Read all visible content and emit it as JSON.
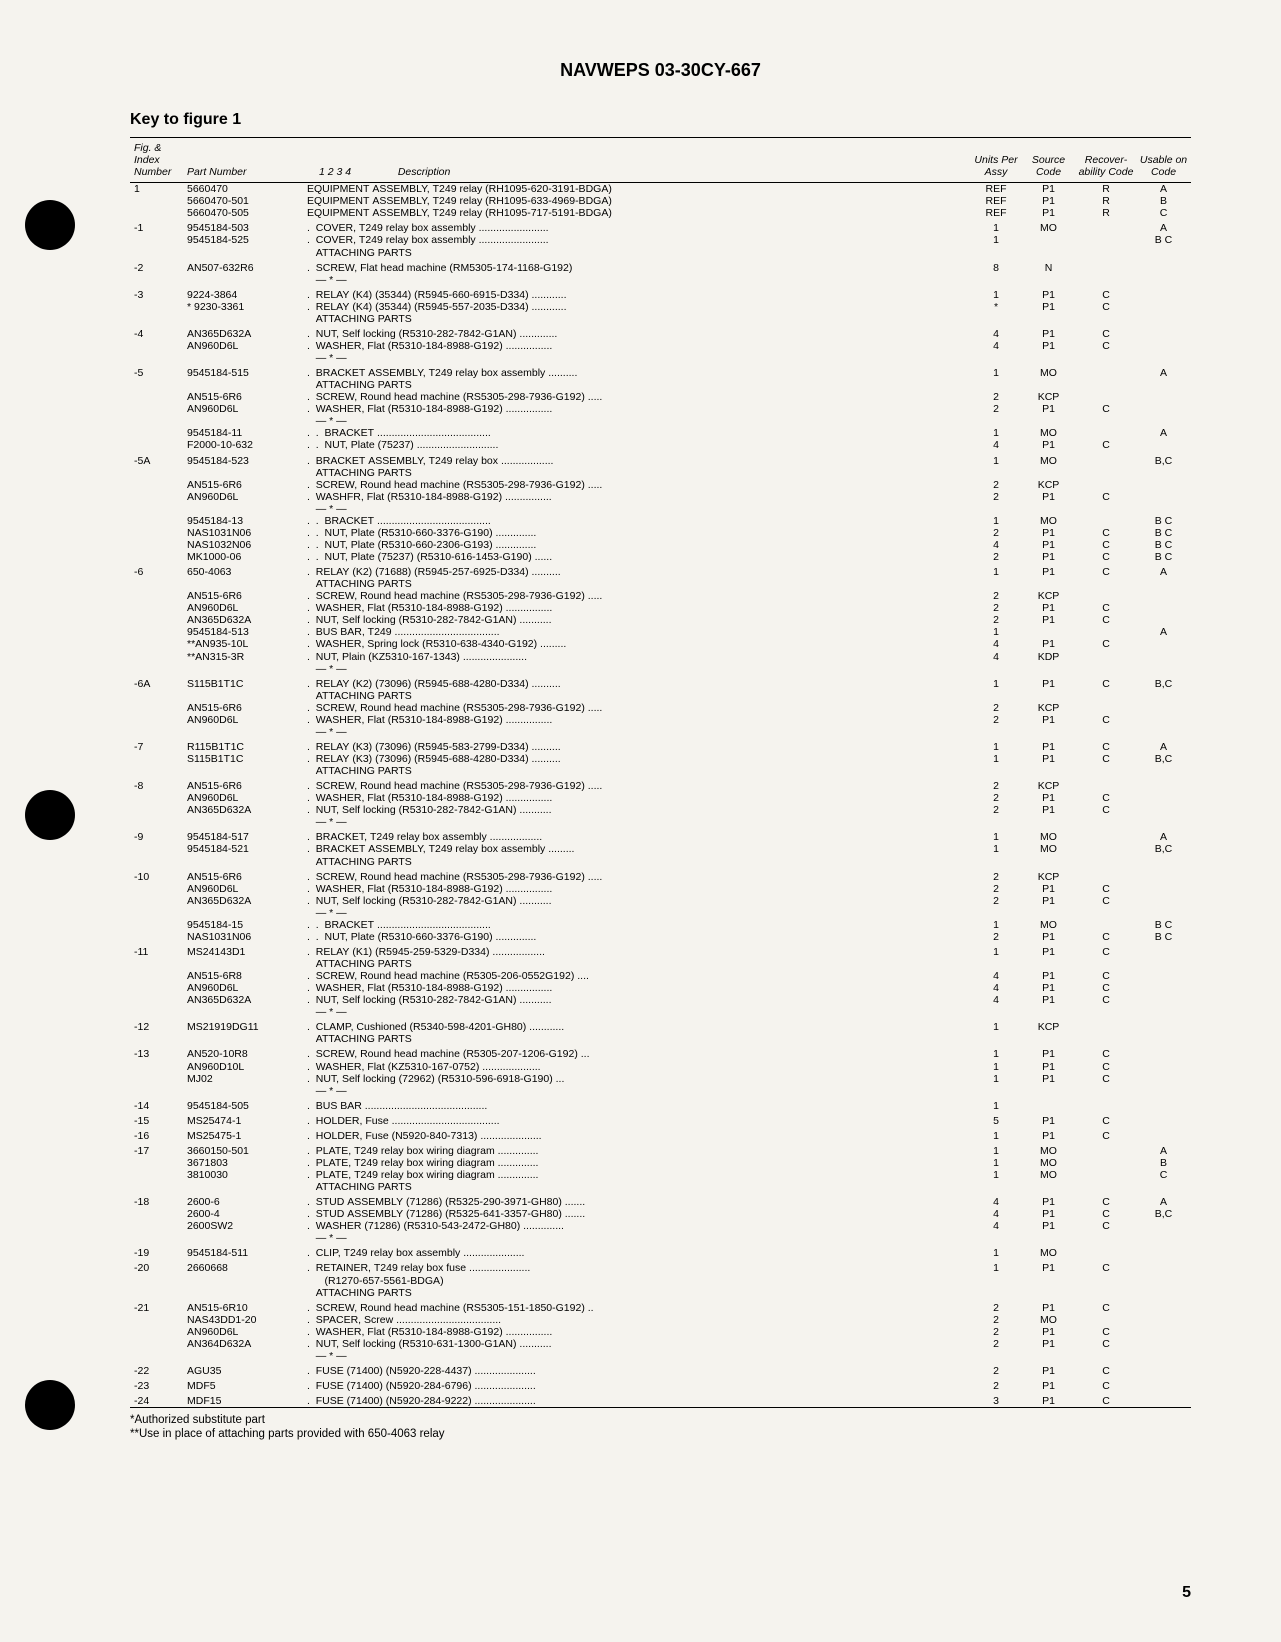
{
  "header": "NAVWEPS 03-30CY-667",
  "key_title": "Key to figure 1",
  "columns": {
    "idx": "Fig. &\nIndex\nNumber",
    "part": "Part Number",
    "desc_nums": "1   2   3   4",
    "desc": "Description",
    "units": "Units\nPer\nAssy",
    "src": "Source\nCode",
    "rec": "Recover-\nability\nCode",
    "use": "Usable\non\nCode"
  },
  "rows": [
    {
      "idx": "1",
      "part": "5660470",
      "desc": "EQUIPMENT ASSEMBLY, T249 relay (RH1095-620-3191-BDGA)",
      "units": "REF",
      "src": "P1",
      "rec": "R",
      "use": "A"
    },
    {
      "idx": "",
      "part": "5660470-501",
      "desc": "EQUIPMENT ASSEMBLY, T249 relay (RH1095-633-4969-BDGA)",
      "units": "REF",
      "src": "P1",
      "rec": "R",
      "use": "B"
    },
    {
      "idx": "",
      "part": "5660470-505",
      "desc": "EQUIPMENT ASSEMBLY, T249 relay (RH1095-717-5191-BDGA)",
      "units": "REF",
      "src": "P1",
      "rec": "R",
      "use": "C"
    },
    {
      "idx": "-1",
      "part": "9545184-503",
      "desc": ".  COVER, T249 relay box assembly ........................",
      "units": "1",
      "src": "MO",
      "rec": "",
      "use": "A"
    },
    {
      "idx": "",
      "part": "9545184-525",
      "desc": ".  COVER, T249 relay box assembly ........................",
      "units": "1",
      "src": "",
      "rec": "",
      "use": "B C"
    },
    {
      "idx": "",
      "part": "",
      "desc": "   ATTACHING PARTS",
      "units": "",
      "src": "",
      "rec": "",
      "use": ""
    },
    {
      "idx": "-2",
      "part": "AN507-632R6",
      "desc": ".  SCREW, Flat head machine (RM5305-174-1168-G192)",
      "units": "8",
      "src": "N",
      "rec": "",
      "use": ""
    },
    {
      "idx": "",
      "part": "",
      "desc": "   — * —",
      "units": "",
      "src": "",
      "rec": "",
      "use": ""
    },
    {
      "idx": "-3",
      "part": "9224-3864",
      "desc": ".  RELAY (K4) (35344) (R5945-660-6915-D334) ............",
      "units": "1",
      "src": "P1",
      "rec": "C",
      "use": ""
    },
    {
      "idx": "",
      "part": "* 9230-3361",
      "desc": ".  RELAY (K4) (35344) (R5945-557-2035-D334) ............",
      "units": "*",
      "src": "P1",
      "rec": "C",
      "use": ""
    },
    {
      "idx": "",
      "part": "",
      "desc": "   ATTACHING PARTS",
      "units": "",
      "src": "",
      "rec": "",
      "use": ""
    },
    {
      "idx": "-4",
      "part": "AN365D632A",
      "desc": ".  NUT, Self locking (R5310-282-7842-G1AN) .............",
      "units": "4",
      "src": "P1",
      "rec": "C",
      "use": ""
    },
    {
      "idx": "",
      "part": "AN960D6L",
      "desc": ".  WASHER, Flat (R5310-184-8988-G192) ................",
      "units": "4",
      "src": "P1",
      "rec": "C",
      "use": ""
    },
    {
      "idx": "",
      "part": "",
      "desc": "   — * —",
      "units": "",
      "src": "",
      "rec": "",
      "use": ""
    },
    {
      "idx": "-5",
      "part": "9545184-515",
      "desc": ".  BRACKET ASSEMBLY, T249 relay box assembly ..........",
      "units": "1",
      "src": "MO",
      "rec": "",
      "use": "A"
    },
    {
      "idx": "",
      "part": "",
      "desc": "   ATTACHING PARTS",
      "units": "",
      "src": "",
      "rec": "",
      "use": ""
    },
    {
      "idx": "",
      "part": "AN515-6R6",
      "desc": ".  SCREW, Round head machine (RS5305-298-7936-G192) .....",
      "units": "2",
      "src": "KCP",
      "rec": "",
      "use": ""
    },
    {
      "idx": "",
      "part": "AN960D6L",
      "desc": ".  WASHER, Flat (R5310-184-8988-G192) ................",
      "units": "2",
      "src": "P1",
      "rec": "C",
      "use": ""
    },
    {
      "idx": "",
      "part": "",
      "desc": "   — * —",
      "units": "",
      "src": "",
      "rec": "",
      "use": ""
    },
    {
      "idx": "",
      "part": "9545184-11",
      "desc": ".  .  BRACKET .......................................",
      "units": "1",
      "src": "MO",
      "rec": "",
      "use": "A"
    },
    {
      "idx": "",
      "part": "F2000-10-632",
      "desc": ".  .  NUT, Plate (75237) ............................",
      "units": "4",
      "src": "P1",
      "rec": "C",
      "use": ""
    },
    {
      "idx": "-5A",
      "part": "9545184-523",
      "desc": ".  BRACKET ASSEMBLY, T249 relay box ..................",
      "units": "1",
      "src": "MO",
      "rec": "",
      "use": "B,C"
    },
    {
      "idx": "",
      "part": "",
      "desc": "   ATTACHING PARTS",
      "units": "",
      "src": "",
      "rec": "",
      "use": ""
    },
    {
      "idx": "",
      "part": "AN515-6R6",
      "desc": ".  SCREW, Round head machine (RS5305-298-7936-G192) .....",
      "units": "2",
      "src": "KCP",
      "rec": "",
      "use": ""
    },
    {
      "idx": "",
      "part": "AN960D6L",
      "desc": ".  WASHFR, Flat (R5310-184-8988-G192) ................",
      "units": "2",
      "src": "P1",
      "rec": "C",
      "use": ""
    },
    {
      "idx": "",
      "part": "",
      "desc": "   — * —",
      "units": "",
      "src": "",
      "rec": "",
      "use": ""
    },
    {
      "idx": "",
      "part": "9545184-13",
      "desc": ".  .  BRACKET .......................................",
      "units": "1",
      "src": "MO",
      "rec": "",
      "use": "B C"
    },
    {
      "idx": "",
      "part": "NAS1031N06",
      "desc": ".  .  NUT, Plate (R5310-660-3376-G190) ..............",
      "units": "2",
      "src": "P1",
      "rec": "C",
      "use": "B C"
    },
    {
      "idx": "",
      "part": "NAS1032N06",
      "desc": ".  .  NUT, Plate (R5310-660-2306-G193) ..............",
      "units": "4",
      "src": "P1",
      "rec": "C",
      "use": "B C"
    },
    {
      "idx": "",
      "part": "MK1000-06",
      "desc": ".  .  NUT, Plate (75237) (R5310-616-1453-G190) ......",
      "units": "2",
      "src": "P1",
      "rec": "C",
      "use": "B C"
    },
    {
      "idx": "-6",
      "part": "650-4063",
      "desc": ".  RELAY (K2) (71688) (R5945-257-6925-D334) ..........",
      "units": "1",
      "src": "P1",
      "rec": "C",
      "use": "A"
    },
    {
      "idx": "",
      "part": "",
      "desc": "   ATTACHING PARTS",
      "units": "",
      "src": "",
      "rec": "",
      "use": ""
    },
    {
      "idx": "",
      "part": "AN515-6R6",
      "desc": ".  SCREW, Round head machine (RS5305-298-7936-G192) .....",
      "units": "2",
      "src": "KCP",
      "rec": "",
      "use": ""
    },
    {
      "idx": "",
      "part": "AN960D6L",
      "desc": ".  WASHER, Flat (R5310-184-8988-G192) ................",
      "units": "2",
      "src": "P1",
      "rec": "C",
      "use": ""
    },
    {
      "idx": "",
      "part": "AN365D632A",
      "desc": ".  NUT, Self locking (R5310-282-7842-G1AN) ...........",
      "units": "2",
      "src": "P1",
      "rec": "C",
      "use": ""
    },
    {
      "idx": "",
      "part": "9545184-513",
      "desc": ".  BUS BAR, T249 ....................................",
      "units": "1",
      "src": "",
      "rec": "",
      "use": "A"
    },
    {
      "idx": "",
      "part": "**AN935-10L",
      "desc": ".  WASHER, Spring lock (R5310-638-4340-G192) .........",
      "units": "4",
      "src": "P1",
      "rec": "C",
      "use": ""
    },
    {
      "idx": "",
      "part": "**AN315-3R",
      "desc": ".  NUT, Plain (KZ5310-167-1343) ......................",
      "units": "4",
      "src": "KDP",
      "rec": "",
      "use": ""
    },
    {
      "idx": "",
      "part": "",
      "desc": "   — * —",
      "units": "",
      "src": "",
      "rec": "",
      "use": ""
    },
    {
      "idx": "-6A",
      "part": "S115B1T1C",
      "desc": ".  RELAY (K2) (73096) (R5945-688-4280-D334) ..........",
      "units": "1",
      "src": "P1",
      "rec": "C",
      "use": "B,C"
    },
    {
      "idx": "",
      "part": "",
      "desc": "   ATTACHING PARTS",
      "units": "",
      "src": "",
      "rec": "",
      "use": ""
    },
    {
      "idx": "",
      "part": "AN515-6R6",
      "desc": ".  SCREW, Round head machine (RS5305-298-7936-G192) .....",
      "units": "2",
      "src": "KCP",
      "rec": "",
      "use": ""
    },
    {
      "idx": "",
      "part": "AN960D6L",
      "desc": ".  WASHER, Flat (R5310-184-8988-G192) ................",
      "units": "2",
      "src": "P1",
      "rec": "C",
      "use": ""
    },
    {
      "idx": "",
      "part": "",
      "desc": "   — * —",
      "units": "",
      "src": "",
      "rec": "",
      "use": ""
    },
    {
      "idx": "-7",
      "part": "R115B1T1C",
      "desc": ".  RELAY (K3) (73096) (R5945-583-2799-D334) ..........",
      "units": "1",
      "src": "P1",
      "rec": "C",
      "use": "A"
    },
    {
      "idx": "",
      "part": "S115B1T1C",
      "desc": ".  RELAY (K3) (73096) (R5945-688-4280-D334) ..........",
      "units": "1",
      "src": "P1",
      "rec": "C",
      "use": "B,C"
    },
    {
      "idx": "",
      "part": "",
      "desc": "   ATTACHING PARTS",
      "units": "",
      "src": "",
      "rec": "",
      "use": ""
    },
    {
      "idx": "-8",
      "part": "AN515-6R6",
      "desc": ".  SCREW, Round head machine (RS5305-298-7936-G192) .....",
      "units": "2",
      "src": "KCP",
      "rec": "",
      "use": ""
    },
    {
      "idx": "",
      "part": "AN960D6L",
      "desc": ".  WASHER, Flat (R5310-184-8988-G192) ................",
      "units": "2",
      "src": "P1",
      "rec": "C",
      "use": ""
    },
    {
      "idx": "",
      "part": "AN365D632A",
      "desc": ".  NUT, Self locking (R5310-282-7842-G1AN) ...........",
      "units": "2",
      "src": "P1",
      "rec": "C",
      "use": ""
    },
    {
      "idx": "",
      "part": "",
      "desc": "   — * —",
      "units": "",
      "src": "",
      "rec": "",
      "use": ""
    },
    {
      "idx": "-9",
      "part": "9545184-517",
      "desc": ".  BRACKET, T249 relay box assembly ..................",
      "units": "1",
      "src": "MO",
      "rec": "",
      "use": "A"
    },
    {
      "idx": "",
      "part": "9545184-521",
      "desc": ".  BRACKET ASSEMBLY, T249 relay box assembly .........",
      "units": "1",
      "src": "MO",
      "rec": "",
      "use": "B,C"
    },
    {
      "idx": "",
      "part": "",
      "desc": "   ATTACHING PARTS",
      "units": "",
      "src": "",
      "rec": "",
      "use": ""
    },
    {
      "idx": "-10",
      "part": "AN515-6R6",
      "desc": ".  SCREW, Round head machine (RS5305-298-7936-G192) .....",
      "units": "2",
      "src": "KCP",
      "rec": "",
      "use": ""
    },
    {
      "idx": "",
      "part": "AN960D6L",
      "desc": ".  WASHER, Flat (R5310-184-8988-G192) ................",
      "units": "2",
      "src": "P1",
      "rec": "C",
      "use": ""
    },
    {
      "idx": "",
      "part": "AN365D632A",
      "desc": ".  NUT, Self locking (R5310-282-7842-G1AN) ...........",
      "units": "2",
      "src": "P1",
      "rec": "C",
      "use": ""
    },
    {
      "idx": "",
      "part": "",
      "desc": "   — * —",
      "units": "",
      "src": "",
      "rec": "",
      "use": ""
    },
    {
      "idx": "",
      "part": "9545184-15",
      "desc": ".  .  BRACKET .......................................",
      "units": "1",
      "src": "MO",
      "rec": "",
      "use": "B C"
    },
    {
      "idx": "",
      "part": "NAS1031N06",
      "desc": ".  .  NUT, Plate (R5310-660-3376-G190) ..............",
      "units": "2",
      "src": "P1",
      "rec": "C",
      "use": "B C"
    },
    {
      "idx": "-11",
      "part": "MS24143D1",
      "desc": ".  RELAY (K1) (R5945-259-5329-D334) ..................",
      "units": "1",
      "src": "P1",
      "rec": "C",
      "use": ""
    },
    {
      "idx": "",
      "part": "",
      "desc": "   ATTACHING PARTS",
      "units": "",
      "src": "",
      "rec": "",
      "use": ""
    },
    {
      "idx": "",
      "part": "AN515-6R8",
      "desc": ".  SCREW, Round head machine (R5305-206-0552G192) ....",
      "units": "4",
      "src": "P1",
      "rec": "C",
      "use": ""
    },
    {
      "idx": "",
      "part": "AN960D6L",
      "desc": ".  WASHER, Flat (R5310-184-8988-G192) ................",
      "units": "4",
      "src": "P1",
      "rec": "C",
      "use": ""
    },
    {
      "idx": "",
      "part": "AN365D632A",
      "desc": ".  NUT, Self locking (R5310-282-7842-G1AN) ...........",
      "units": "4",
      "src": "P1",
      "rec": "C",
      "use": ""
    },
    {
      "idx": "",
      "part": "",
      "desc": "   — * —",
      "units": "",
      "src": "",
      "rec": "",
      "use": ""
    },
    {
      "idx": "-12",
      "part": "MS21919DG11",
      "desc": ".  CLAMP, Cushioned (R5340-598-4201-GH80) ............",
      "units": "1",
      "src": "KCP",
      "rec": "",
      "use": ""
    },
    {
      "idx": "",
      "part": "",
      "desc": "   ATTACHING PARTS",
      "units": "",
      "src": "",
      "rec": "",
      "use": ""
    },
    {
      "idx": "-13",
      "part": "AN520-10R8",
      "desc": ".  SCREW, Round head machine (R5305-207-1206-G192) ...",
      "units": "1",
      "src": "P1",
      "rec": "C",
      "use": ""
    },
    {
      "idx": "",
      "part": "AN960D10L",
      "desc": ".  WASHER, Flat (KZ5310-167-0752) ....................",
      "units": "1",
      "src": "P1",
      "rec": "C",
      "use": ""
    },
    {
      "idx": "",
      "part": "MJ02",
      "desc": ".  NUT, Self locking (72962) (R5310-596-6918-G190) ...",
      "units": "1",
      "src": "P1",
      "rec": "C",
      "use": ""
    },
    {
      "idx": "",
      "part": "",
      "desc": "   — * —",
      "units": "",
      "src": "",
      "rec": "",
      "use": ""
    },
    {
      "idx": "-14",
      "part": "9545184-505",
      "desc": ".  BUS BAR ..........................................",
      "units": "1",
      "src": "",
      "rec": "",
      "use": ""
    },
    {
      "idx": "-15",
      "part": "MS25474-1",
      "desc": ".  HOLDER, Fuse .....................................",
      "units": "5",
      "src": "P1",
      "rec": "C",
      "use": ""
    },
    {
      "idx": "-16",
      "part": "MS25475-1",
      "desc": ".  HOLDER, Fuse (N5920-840-7313) .....................",
      "units": "1",
      "src": "P1",
      "rec": "C",
      "use": ""
    },
    {
      "idx": "-17",
      "part": "3660150-501",
      "desc": ".  PLATE, T249 relay box wiring diagram ..............",
      "units": "1",
      "src": "MO",
      "rec": "",
      "use": "A"
    },
    {
      "idx": "",
      "part": "3671803",
      "desc": ".  PLATE, T249 relay box wiring diagram ..............",
      "units": "1",
      "src": "MO",
      "rec": "",
      "use": "B"
    },
    {
      "idx": "",
      "part": "3810030",
      "desc": ".  PLATE, T249 relay box wiring diagram ..............",
      "units": "1",
      "src": "MO",
      "rec": "",
      "use": "C"
    },
    {
      "idx": "",
      "part": "",
      "desc": "   ATTACHING PARTS",
      "units": "",
      "src": "",
      "rec": "",
      "use": ""
    },
    {
      "idx": "-18",
      "part": "2600-6",
      "desc": ".  STUD ASSEMBLY (71286) (R5325-290-3971-GH80) .......",
      "units": "4",
      "src": "P1",
      "rec": "C",
      "use": "A"
    },
    {
      "idx": "",
      "part": "2600-4",
      "desc": ".  STUD ASSEMBLY (71286) (R5325-641-3357-GH80) .......",
      "units": "4",
      "src": "P1",
      "rec": "C",
      "use": "B,C"
    },
    {
      "idx": "",
      "part": "2600SW2",
      "desc": ".  WASHER (71286) (R5310-543-2472-GH80) ..............",
      "units": "4",
      "src": "P1",
      "rec": "C",
      "use": ""
    },
    {
      "idx": "",
      "part": "",
      "desc": "   — * —",
      "units": "",
      "src": "",
      "rec": "",
      "use": ""
    },
    {
      "idx": "-19",
      "part": "9545184-511",
      "desc": ".  CLIP, T249 relay box assembly .....................",
      "units": "1",
      "src": "MO",
      "rec": "",
      "use": ""
    },
    {
      "idx": "-20",
      "part": "2660668",
      "desc": ".  RETAINER, T249 relay box fuse .....................",
      "units": "1",
      "src": "P1",
      "rec": "C",
      "use": ""
    },
    {
      "idx": "",
      "part": "",
      "desc": "      (R1270-657-5561-BDGA)",
      "units": "",
      "src": "",
      "rec": "",
      "use": ""
    },
    {
      "idx": "",
      "part": "",
      "desc": "   ATTACHING PARTS",
      "units": "",
      "src": "",
      "rec": "",
      "use": ""
    },
    {
      "idx": "-21",
      "part": "AN515-6R10",
      "desc": ".  SCREW, Round head machine (RS5305-151-1850-G192) ..",
      "units": "2",
      "src": "P1",
      "rec": "C",
      "use": ""
    },
    {
      "idx": "",
      "part": "NAS43DD1-20",
      "desc": ".  SPACER, Screw ....................................",
      "units": "2",
      "src": "MO",
      "rec": "",
      "use": ""
    },
    {
      "idx": "",
      "part": "AN960D6L",
      "desc": ".  WASHER, Flat (R5310-184-8988-G192) ................",
      "units": "2",
      "src": "P1",
      "rec": "C",
      "use": ""
    },
    {
      "idx": "",
      "part": "AN364D632A",
      "desc": ".  NUT, Self locking (R5310-631-1300-G1AN) ...........",
      "units": "2",
      "src": "P1",
      "rec": "C",
      "use": ""
    },
    {
      "idx": "",
      "part": "",
      "desc": "   — * —",
      "units": "",
      "src": "",
      "rec": "",
      "use": ""
    },
    {
      "idx": "-22",
      "part": "AGU35",
      "desc": ".  FUSE (71400) (N5920-228-4437) .....................",
      "units": "2",
      "src": "P1",
      "rec": "C",
      "use": ""
    },
    {
      "idx": "-23",
      "part": "MDF5",
      "desc": ".  FUSE (71400) (N5920-284-6796) .....................",
      "units": "2",
      "src": "P1",
      "rec": "C",
      "use": ""
    },
    {
      "idx": "-24",
      "part": "MDF15",
      "desc": ".  FUSE (71400) (N5920-284-9222) .....................",
      "units": "3",
      "src": "P1",
      "rec": "C",
      "use": ""
    }
  ],
  "footnote1": "*Authorized substitute part",
  "footnote2": "**Use in place of attaching parts provided with 650-4063 relay",
  "page_num": "5"
}
